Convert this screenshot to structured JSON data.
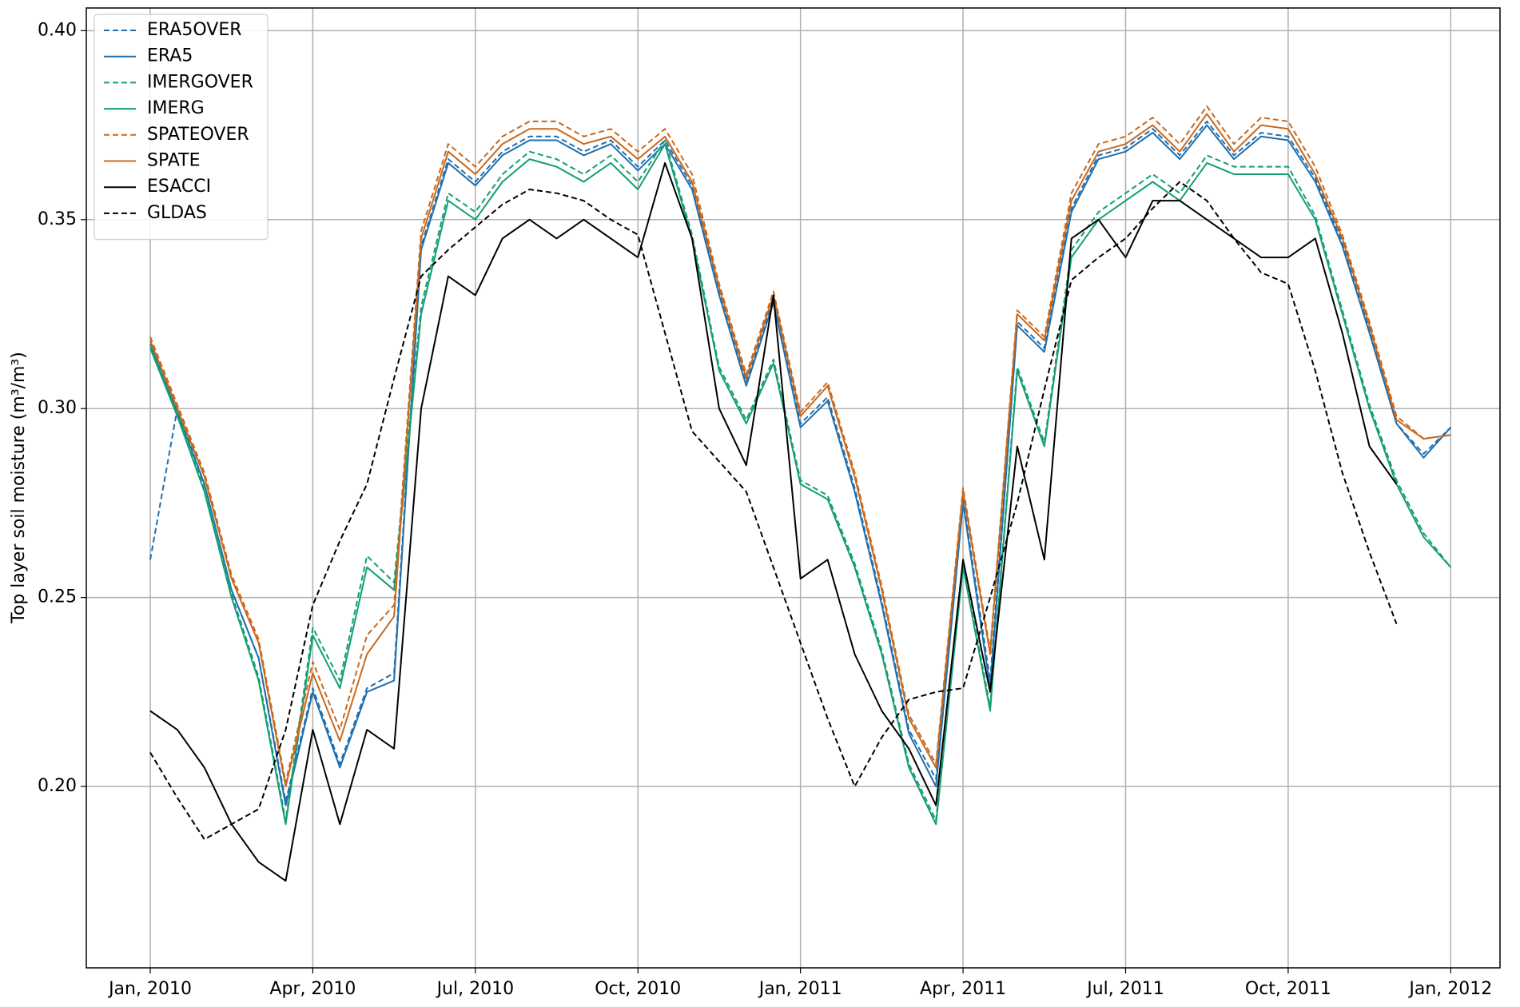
{
  "chart_data": {
    "type": "line",
    "ylabel": "Top layer soil moisture (m³/m³)",
    "x": [
      0,
      0.5,
      1,
      1.5,
      2,
      2.5,
      3,
      3.5,
      4,
      4.5,
      5,
      5.5,
      6,
      6.5,
      7,
      7.5,
      8,
      8.5,
      9,
      9.5,
      10,
      10.5,
      11,
      11.5,
      12,
      12.5,
      13,
      13.5,
      14,
      14.5,
      15,
      15.5,
      16,
      16.5,
      17,
      17.5,
      18,
      18.5,
      19,
      19.5,
      20,
      20.5,
      21,
      21.5,
      22,
      22.5,
      23,
      23.5,
      24
    ],
    "xlim": [
      -1.18,
      24.91
    ],
    "xticks": [
      {
        "value": 0,
        "label": "Jan, 2010"
      },
      {
        "value": 3,
        "label": "Apr, 2010"
      },
      {
        "value": 6,
        "label": "Jul, 2010"
      },
      {
        "value": 9,
        "label": "Oct, 2010"
      },
      {
        "value": 12,
        "label": "Jan, 2011"
      },
      {
        "value": 15,
        "label": "Apr, 2011"
      },
      {
        "value": 18,
        "label": "Jul, 2011"
      },
      {
        "value": 21,
        "label": "Oct, 2011"
      },
      {
        "value": 24,
        "label": "Jan, 2012"
      }
    ],
    "ylim": [
      0.152,
      0.406
    ],
    "yticks": [
      {
        "value": 0.2,
        "label": "0.20"
      },
      {
        "value": 0.25,
        "label": "0.25"
      },
      {
        "value": 0.3,
        "label": "0.30"
      },
      {
        "value": 0.35,
        "label": "0.35"
      },
      {
        "value": 0.4,
        "label": "0.40"
      }
    ],
    "grid": true,
    "legend": "upper left",
    "series": [
      {
        "name": "ERA5OVER",
        "color": "#1f6faf",
        "linestyle": "dashed",
        "values": [
          0.26,
          0.3,
          0.28,
          0.252,
          0.234,
          0.196,
          0.226,
          0.206,
          0.226,
          0.23,
          0.343,
          0.366,
          0.36,
          0.368,
          0.372,
          0.372,
          0.368,
          0.371,
          0.364,
          0.371,
          0.359,
          0.331,
          0.307,
          0.329,
          0.296,
          0.303,
          0.279,
          0.249,
          0.215,
          0.202,
          0.276,
          0.228,
          0.323,
          0.316,
          0.353,
          0.367,
          0.369,
          0.374,
          0.367,
          0.376,
          0.367,
          0.373,
          0.372,
          0.361,
          0.344,
          0.321,
          0.296,
          0.288,
          0.295
        ]
      },
      {
        "name": "ERA5",
        "color": "#1f6faf",
        "linestyle": "solid",
        "values": [
          0.317,
          0.299,
          0.28,
          0.252,
          0.234,
          0.195,
          0.225,
          0.205,
          0.225,
          0.228,
          0.342,
          0.365,
          0.359,
          0.367,
          0.371,
          0.371,
          0.367,
          0.37,
          0.363,
          0.37,
          0.358,
          0.33,
          0.306,
          0.328,
          0.295,
          0.302,
          0.278,
          0.248,
          0.214,
          0.2,
          0.275,
          0.226,
          0.322,
          0.315,
          0.352,
          0.366,
          0.368,
          0.373,
          0.366,
          0.375,
          0.366,
          0.372,
          0.371,
          0.36,
          0.343,
          0.32,
          0.296,
          0.287,
          0.295
        ]
      },
      {
        "name": "IMERGOVER",
        "color": "#139e76",
        "linestyle": "dashed",
        "values": [
          0.317,
          0.299,
          0.279,
          0.251,
          0.229,
          0.191,
          0.242,
          0.228,
          0.261,
          0.254,
          0.327,
          0.357,
          0.352,
          0.362,
          0.368,
          0.366,
          0.362,
          0.367,
          0.36,
          0.371,
          0.346,
          0.311,
          0.297,
          0.313,
          0.281,
          0.277,
          0.259,
          0.236,
          0.206,
          0.191,
          0.259,
          0.221,
          0.311,
          0.291,
          0.342,
          0.352,
          0.357,
          0.362,
          0.357,
          0.367,
          0.364,
          0.364,
          0.364,
          0.351,
          0.326,
          0.301,
          0.281,
          0.267,
          0.258
        ]
      },
      {
        "name": "IMERG",
        "color": "#139e76",
        "linestyle": "solid",
        "values": [
          0.316,
          0.298,
          0.278,
          0.25,
          0.228,
          0.19,
          0.24,
          0.226,
          0.258,
          0.252,
          0.325,
          0.355,
          0.35,
          0.36,
          0.366,
          0.364,
          0.36,
          0.365,
          0.358,
          0.37,
          0.345,
          0.31,
          0.296,
          0.312,
          0.28,
          0.276,
          0.258,
          0.235,
          0.205,
          0.19,
          0.258,
          0.22,
          0.31,
          0.29,
          0.34,
          0.35,
          0.355,
          0.36,
          0.355,
          0.365,
          0.362,
          0.362,
          0.362,
          0.35,
          0.325,
          0.3,
          0.28,
          0.266,
          0.258
        ]
      },
      {
        "name": "SPATEOVER",
        "color": "#c8691e",
        "linestyle": "dashed",
        "values": [
          0.319,
          0.301,
          0.283,
          0.256,
          0.239,
          0.201,
          0.233,
          0.215,
          0.24,
          0.248,
          0.347,
          0.37,
          0.364,
          0.372,
          0.376,
          0.376,
          0.372,
          0.374,
          0.368,
          0.374,
          0.362,
          0.333,
          0.309,
          0.331,
          0.299,
          0.307,
          0.283,
          0.253,
          0.219,
          0.206,
          0.279,
          0.236,
          0.326,
          0.319,
          0.357,
          0.37,
          0.372,
          0.377,
          0.37,
          0.38,
          0.37,
          0.377,
          0.376,
          0.364,
          0.346,
          0.323,
          0.298,
          0.292,
          0.293
        ]
      },
      {
        "name": "SPATE",
        "color": "#c8691e",
        "linestyle": "solid",
        "values": [
          0.318,
          0.3,
          0.282,
          0.255,
          0.238,
          0.2,
          0.23,
          0.212,
          0.235,
          0.245,
          0.345,
          0.368,
          0.362,
          0.37,
          0.374,
          0.374,
          0.37,
          0.372,
          0.366,
          0.372,
          0.36,
          0.332,
          0.308,
          0.33,
          0.298,
          0.306,
          0.282,
          0.252,
          0.218,
          0.205,
          0.278,
          0.235,
          0.325,
          0.318,
          0.355,
          0.368,
          0.37,
          0.375,
          0.368,
          0.378,
          0.368,
          0.375,
          0.374,
          0.362,
          0.345,
          0.322,
          0.297,
          0.292,
          0.293
        ]
      },
      {
        "name": "ESACCI",
        "color": "#000000",
        "linestyle": "solid",
        "values": [
          0.22,
          0.215,
          0.205,
          0.19,
          0.18,
          0.175,
          0.215,
          0.19,
          0.215,
          0.21,
          0.3,
          0.335,
          0.33,
          0.345,
          0.35,
          0.345,
          0.35,
          0.345,
          0.34,
          0.365,
          0.345,
          0.3,
          0.285,
          0.33,
          0.255,
          0.26,
          0.235,
          0.22,
          0.21,
          0.195,
          0.26,
          0.225,
          0.29,
          0.26,
          0.345,
          0.35,
          0.34,
          0.355,
          0.355,
          0.35,
          0.345,
          0.34,
          0.34,
          0.345,
          0.32,
          0.29,
          0.28,
          null,
          null
        ]
      },
      {
        "name": "GLDAS",
        "color": "#000000",
        "linestyle": "dashed",
        "values": [
          0.209,
          0.197,
          0.186,
          0.19,
          0.194,
          0.215,
          0.248,
          0.265,
          0.28,
          0.308,
          0.335,
          0.342,
          0.348,
          0.354,
          0.358,
          0.357,
          0.355,
          0.35,
          0.346,
          0.32,
          0.294,
          0.286,
          0.278,
          0.258,
          0.238,
          0.218,
          0.2,
          0.213,
          0.223,
          0.225,
          0.226,
          0.25,
          0.275,
          0.305,
          0.334,
          0.34,
          0.345,
          0.353,
          0.36,
          0.355,
          0.345,
          0.336,
          0.333,
          0.31,
          0.283,
          0.262,
          0.243,
          null,
          null
        ]
      }
    ]
  }
}
